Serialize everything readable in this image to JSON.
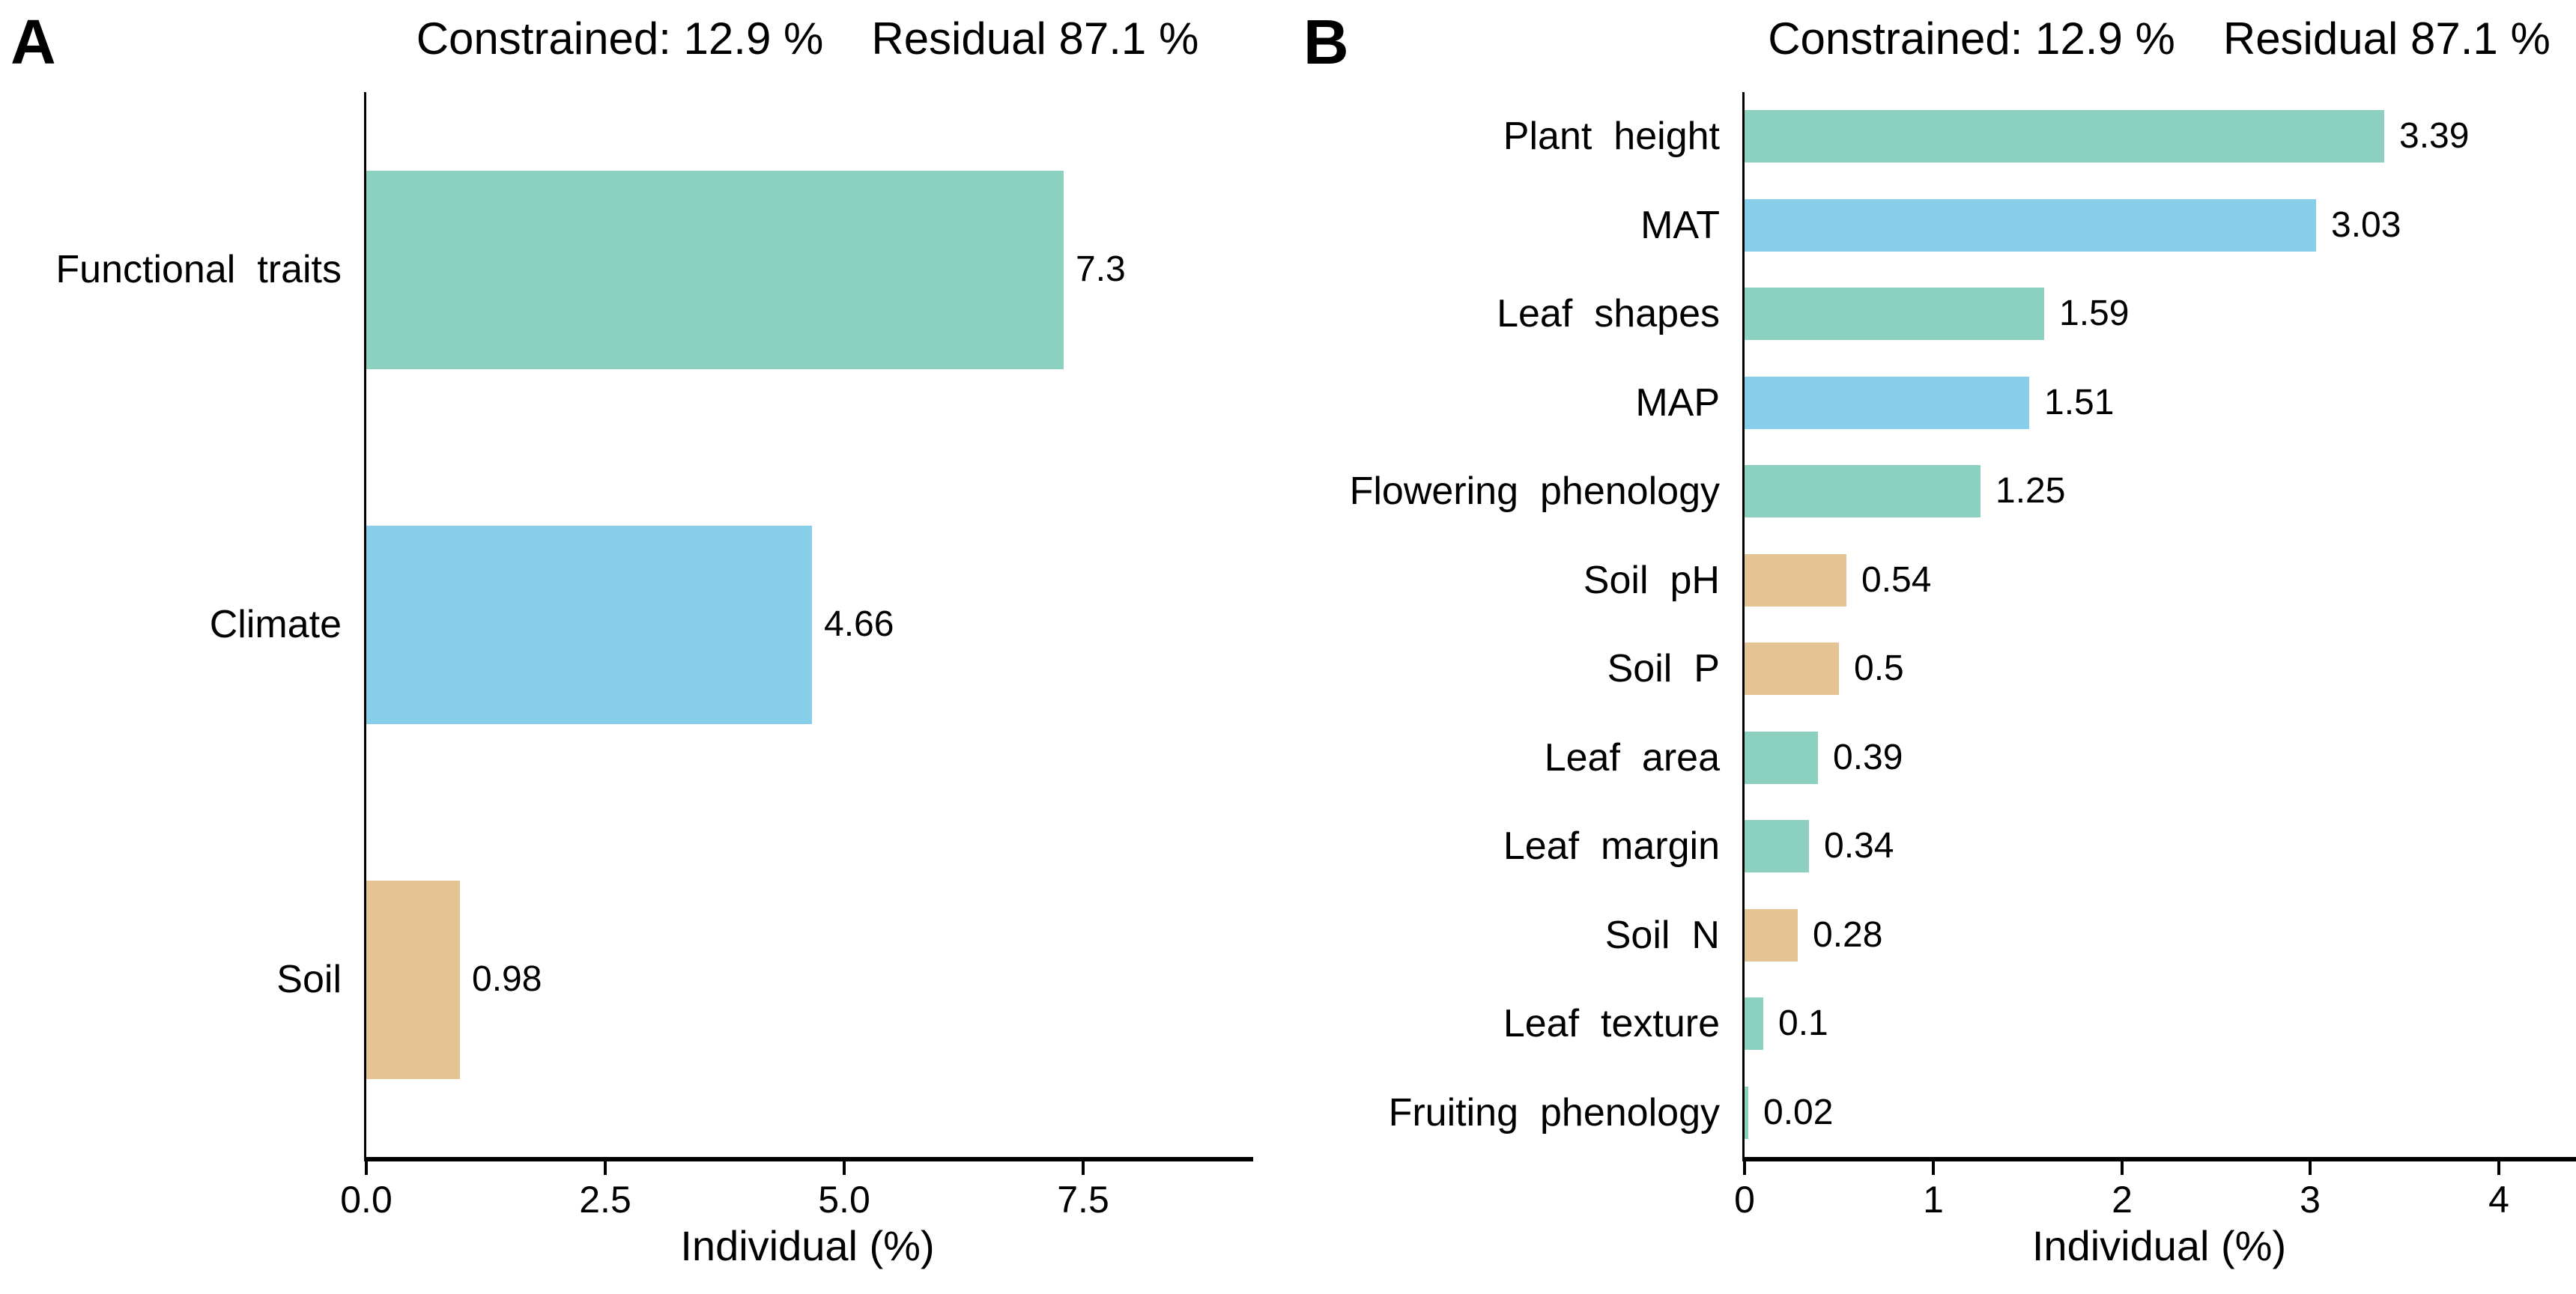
{
  "figure": {
    "background": "#ffffff",
    "palette": {
      "teal": "#8CD0C0",
      "blue": "#87CEEA",
      "tan": "#E5C493"
    }
  },
  "chart_data": [
    {
      "type": "bar",
      "panel": "A",
      "orientation": "horizontal",
      "title": "Constrained: 12.9 %  Residual 87.1 %",
      "title_left": "Constrained: 12.9 %",
      "title_right": "Residual 87.1 %",
      "categories": [
        "Functional traits",
        "Climate",
        "Soil"
      ],
      "values": [
        7.3,
        4.66,
        0.98
      ],
      "value_labels": [
        "7.3",
        "4.66",
        "0.98"
      ],
      "bar_colors": [
        "#8CD0C0",
        "#87CEEA",
        "#E5C493"
      ],
      "xlabel": "Individual (%)",
      "xlim": [
        0,
        9.28
      ],
      "xticks": [
        0,
        2.5,
        5,
        7.5
      ],
      "xtick_labels": [
        "0.0",
        "2.5",
        "5.0",
        "7.5"
      ],
      "grid": false,
      "legend": "none",
      "bar_label_position": "outside-right"
    },
    {
      "type": "bar",
      "panel": "B",
      "orientation": "horizontal",
      "title": "Constrained: 12.9 %  Residual 87.1 %",
      "title_left": "Constrained: 12.9 %",
      "title_right": "Residual 87.1 %",
      "categories": [
        "Plant height",
        "MAT",
        "Leaf shapes",
        "MAP",
        "Flowering phenology",
        "Soil pH",
        "Soil P",
        "Leaf area",
        "Leaf margin",
        "Soil N",
        "Leaf texture",
        "Fruiting phenology"
      ],
      "values": [
        3.39,
        3.03,
        1.59,
        1.51,
        1.25,
        0.54,
        0.5,
        0.39,
        0.34,
        0.28,
        0.1,
        0.02
      ],
      "value_labels": [
        "3.39",
        "3.03",
        "1.59",
        "1.51",
        "1.25",
        "0.54",
        "0.5",
        "0.39",
        "0.34",
        "0.28",
        "0.1",
        "0.02"
      ],
      "bar_colors": [
        "#8CD0C0",
        "#87CEEA",
        "#8CD0C0",
        "#87CEEA",
        "#8CD0C0",
        "#E5C493",
        "#E5C493",
        "#8CD0C0",
        "#8CD0C0",
        "#E5C493",
        "#8CD0C0",
        "#8CD0C0"
      ],
      "xlabel": "Individual (%)",
      "xlim": [
        0,
        4.42
      ],
      "xticks": [
        0,
        1,
        2,
        3,
        4
      ],
      "xtick_labels": [
        "0",
        "1",
        "2",
        "3",
        "4"
      ],
      "grid": false,
      "legend": "none",
      "bar_label_position": "outside-right"
    }
  ]
}
